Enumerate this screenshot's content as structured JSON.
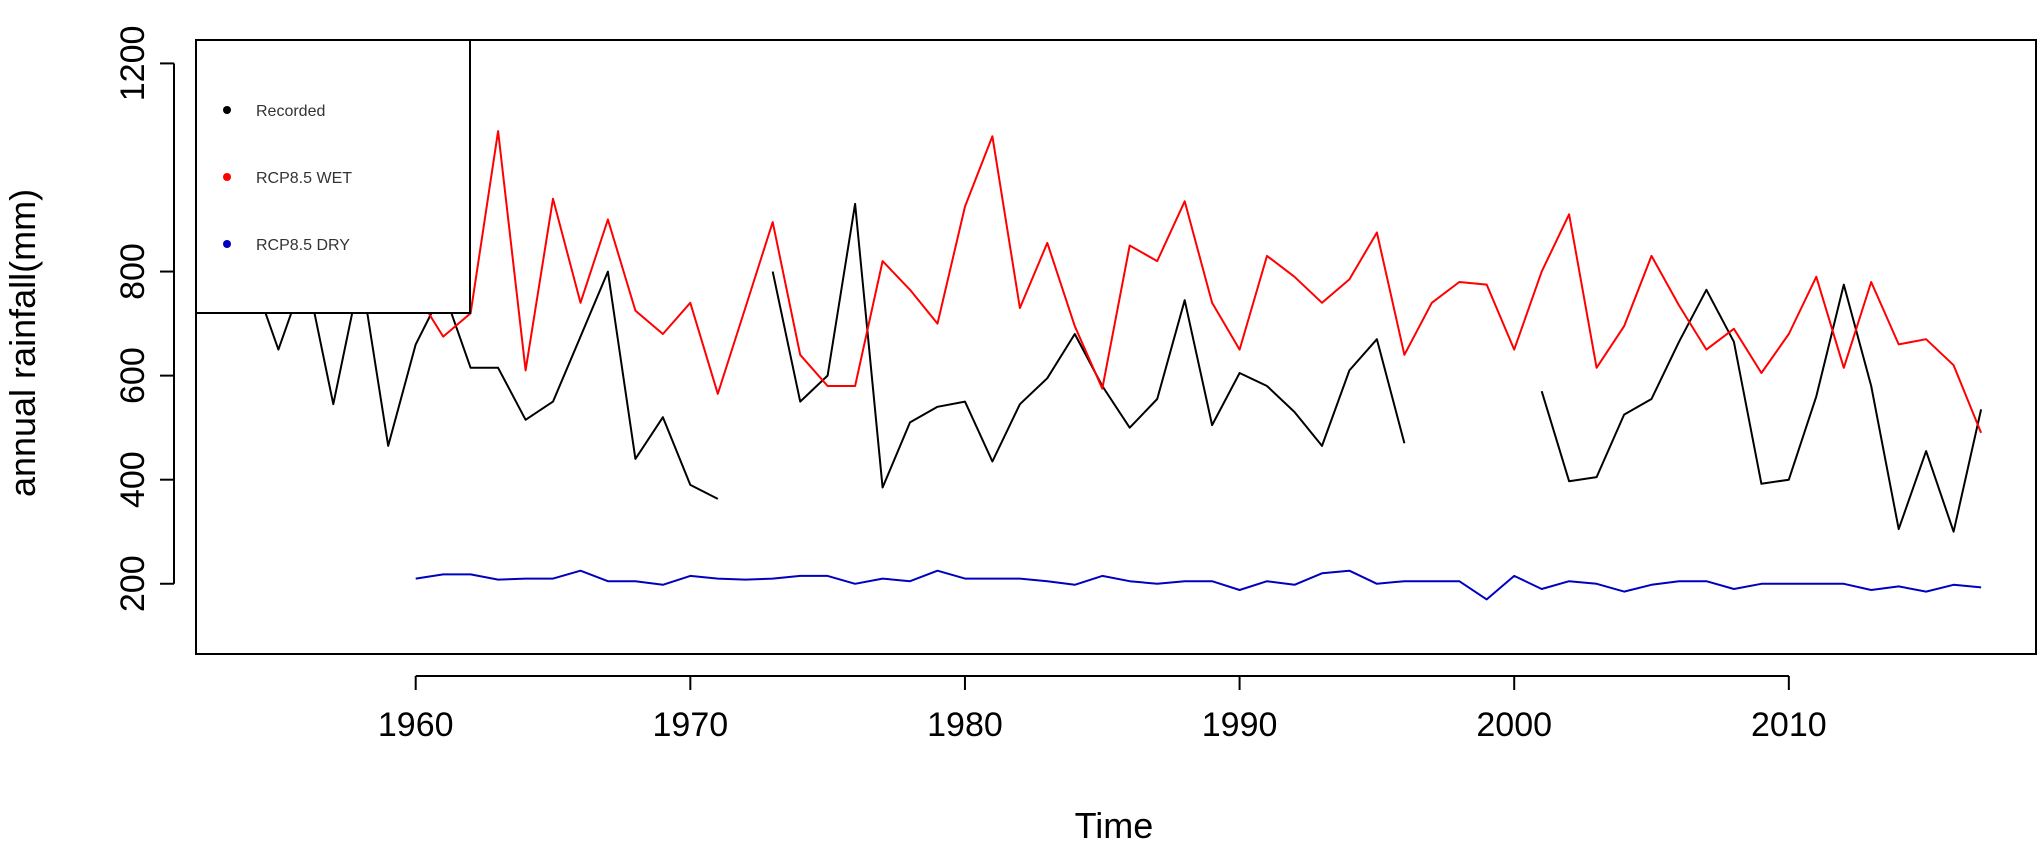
{
  "chart_data": {
    "type": "line",
    "xlabel": "Time",
    "ylabel": "annual rainfall(mm)",
    "xlim": [
      1952,
      2019
    ],
    "ylim": [
      65,
      1245
    ],
    "x_ticks": [
      1960,
      1970,
      1980,
      1990,
      2000,
      2010
    ],
    "y_ticks": [
      200,
      400,
      600,
      800,
      1200
    ],
    "legend_position": "top-left",
    "series": [
      {
        "name": "Recorded",
        "color": "#000000",
        "segments": [
          {
            "x": [
              1953,
              1954,
              1955,
              1956,
              1957,
              1958,
              1959,
              1960,
              1961,
              1962,
              1963,
              1964,
              1965,
              1966,
              1967,
              1968,
              1969,
              1970,
              1971
            ],
            "y": [
              800,
              800,
              650,
              800,
              545,
              800,
              465,
              660,
              765,
              615,
              615,
              515,
              550,
              675,
              800,
              440,
              520,
              390,
              363
            ]
          },
          {
            "x": [
              1973,
              1974,
              1975,
              1976,
              1977,
              1978,
              1979,
              1980,
              1981,
              1982,
              1983,
              1984,
              1985,
              1986,
              1987,
              1988,
              1989,
              1990,
              1991,
              1992,
              1993,
              1994,
              1995,
              1996
            ],
            "y": [
              800,
              550,
              600,
              930,
              385,
              510,
              540,
              550,
              435,
              545,
              595,
              680,
              580,
              500,
              555,
              745,
              505,
              605,
              580,
              530,
              465,
              610,
              670,
              470
            ]
          },
          {
            "x": [
              2001,
              2002,
              2003,
              2004,
              2005,
              2006,
              2007,
              2008,
              2009,
              2010,
              2011,
              2012,
              2013,
              2014,
              2015,
              2016,
              2017
            ],
            "y": [
              570,
              397,
              405,
              525,
              555,
              665,
              765,
              665,
              392,
              400,
              560,
              775,
              580,
              305,
              455,
              300,
              535
            ]
          }
        ]
      },
      {
        "name": "RCP8.5 WET",
        "color": "#ff0000",
        "segments": [
          {
            "x": [
              1960,
              1961,
              1962,
              1963,
              1964,
              1965,
              1966,
              1967,
              1968,
              1969,
              1970,
              1971,
              1972,
              1973,
              1974,
              1975,
              1976,
              1977,
              1978,
              1979,
              1980,
              1981,
              1982,
              1983,
              1984,
              1985,
              1986,
              1987,
              1988,
              1989,
              1990,
              1991,
              1992,
              1993,
              1994,
              1995,
              1996,
              1997,
              1998,
              1999,
              2000,
              2001,
              2002,
              2003,
              2004,
              2005,
              2006,
              2007,
              2008,
              2009,
              2010,
              2011,
              2012,
              2013,
              2014,
              2015,
              2016,
              2017
            ],
            "y": [
              760,
              675,
              720,
              1070,
              610,
              940,
              740,
              900,
              725,
              680,
              740,
              565,
              730,
              895,
              640,
              580,
              580,
              820,
              765,
              700,
              925,
              1060,
              730,
              855,
              695,
              575,
              850,
              820,
              935,
              740,
              650,
              830,
              790,
              740,
              785,
              875,
              640,
              740,
              780,
              775,
              650,
              800,
              910,
              615,
              695,
              830,
              735,
              650,
              690,
              605,
              680,
              790,
              615,
              780,
              660,
              670,
              620,
              490
            ]
          }
        ]
      },
      {
        "name": "RCP8.5 DRY",
        "color": "#0000bf",
        "segments": [
          {
            "x": [
              1960,
              1961,
              1962,
              1963,
              1964,
              1965,
              1966,
              1967,
              1968,
              1969,
              1970,
              1971,
              1972,
              1973,
              1974,
              1975,
              1976,
              1977,
              1978,
              1979,
              1980,
              1981,
              1982,
              1983,
              1984,
              1985,
              1986,
              1987,
              1988,
              1989,
              1990,
              1991,
              1992,
              1993,
              1994,
              1995,
              1996,
              1997,
              1998,
              1999,
              2000,
              2001,
              2002,
              2003,
              2004,
              2005,
              2006,
              2007,
              2008,
              2009,
              2010,
              2011,
              2012,
              2013,
              2014,
              2015,
              2016,
              2017
            ],
            "y": [
              210,
              218,
              218,
              208,
              210,
              210,
              225,
              205,
              205,
              198,
              215,
              210,
              208,
              210,
              215,
              215,
              200,
              210,
              205,
              225,
              210,
              210,
              210,
              205,
              198,
              215,
              205,
              200,
              205,
              205,
              188,
              205,
              198,
              220,
              225,
              200,
              205,
              205,
              205,
              170,
              215,
              190,
              205,
              200,
              185,
              198,
              205,
              205,
              190,
              200,
              200,
              200,
              200,
              188,
              195,
              185,
              198,
              193
            ]
          }
        ]
      }
    ]
  }
}
